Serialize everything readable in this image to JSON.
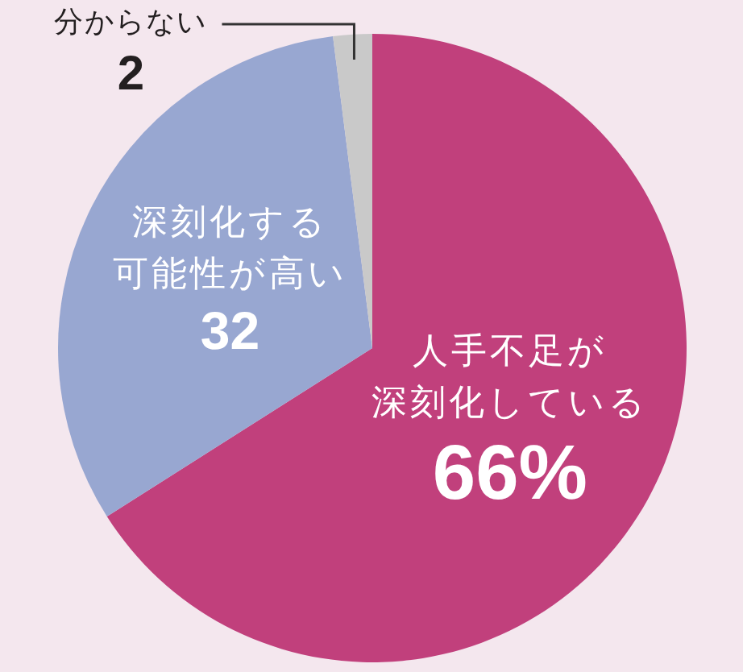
{
  "chart_data": {
    "type": "pie",
    "categories": [
      "人手不足が深刻化している",
      "深刻化する可能性が高い",
      "分からない"
    ],
    "values": [
      66,
      32,
      2
    ],
    "colors": [
      "#c1407c",
      "#98a7d1",
      "#c9c9c9"
    ],
    "value_labels": [
      "66%",
      "32",
      "2"
    ],
    "legend": false
  }
}
